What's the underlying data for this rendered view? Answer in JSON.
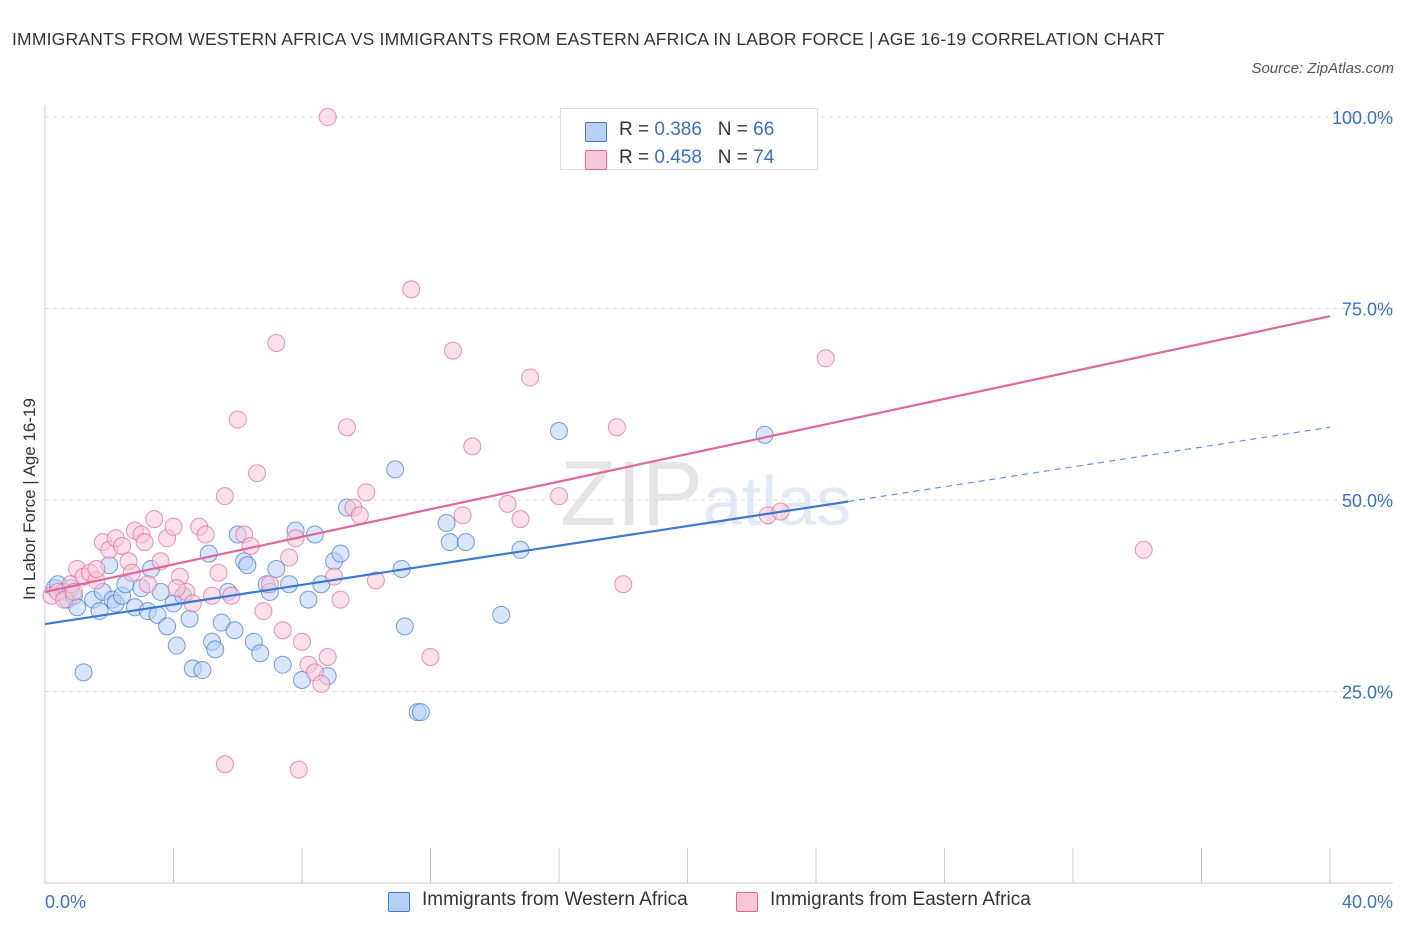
{
  "title": "IMMIGRANTS FROM WESTERN AFRICA VS IMMIGRANTS FROM EASTERN AFRICA IN LABOR FORCE | AGE 16-19 CORRELATION CHART",
  "source": "Source: ZipAtlas.com",
  "watermark": "ZIPatlas",
  "legend_top": [
    {
      "r_label": "R = ",
      "r_value": "0.386",
      "n_label": "N = ",
      "n_value": "66"
    },
    {
      "r_label": "R = ",
      "r_value": "0.458",
      "n_label": "N = ",
      "n_value": "74"
    }
  ],
  "legend_bottom": [
    "Immigrants from Western Africa",
    "Immigrants from Eastern Africa"
  ],
  "colors": {
    "blue": "#3a78d4",
    "pink": "#e0679a",
    "blue_fill": "#b8d0f5",
    "pink_fill": "#f8c6d7",
    "axis_text": "#3a6fc4"
  },
  "chart_data": {
    "type": "scatter",
    "title": "IMMIGRANTS FROM WESTERN AFRICA VS IMMIGRANTS FROM EASTERN AFRICA IN LABOR FORCE | AGE 16-19 CORRELATION CHART",
    "xlabel": "",
    "ylabel": "In Labor Force | Age 16-19",
    "xlim": [
      0,
      40
    ],
    "ylim": [
      0,
      100
    ],
    "x_tick_labels": [
      "0.0%",
      "40.0%"
    ],
    "y_tick_labels": [
      "25.0%",
      "50.0%",
      "75.0%",
      "100.0%"
    ],
    "y_ticks": [
      25,
      50,
      75,
      100
    ],
    "grid": true,
    "legend": "top-center",
    "series": [
      {
        "name": "Immigrants from Western Africa",
        "color": "#3a78d4",
        "trend": {
          "x": [
            0,
            25
          ],
          "y": [
            33.8,
            49.8
          ],
          "dashed_extension": {
            "x": [
              25,
              40
            ],
            "y": [
              49.8,
              59.5
            ]
          }
        },
        "x": [
          0.3,
          0.4,
          0.6,
          0.7,
          0.8,
          0.9,
          1.0,
          1.2,
          1.5,
          1.7,
          1.8,
          2.0,
          2.1,
          2.2,
          2.4,
          2.5,
          2.8,
          3.0,
          3.2,
          3.3,
          3.5,
          3.6,
          3.8,
          4.0,
          4.1,
          4.3,
          4.5,
          4.6,
          4.9,
          5.1,
          5.2,
          5.3,
          5.5,
          5.7,
          5.9,
          6.0,
          6.2,
          6.3,
          6.5,
          6.7,
          6.9,
          7.0,
          7.2,
          7.4,
          7.6,
          7.8,
          8.0,
          8.2,
          8.4,
          8.6,
          8.8,
          9.0,
          9.2,
          9.4,
          10.9,
          11.1,
          11.2,
          11.6,
          11.7,
          12.5,
          12.6,
          13.1,
          14.2,
          14.8,
          16.0,
          22.4
        ],
        "y": [
          38.5,
          39.0,
          38.0,
          37.0,
          38.5,
          37.5,
          36.0,
          27.5,
          37.0,
          35.5,
          38.0,
          41.5,
          37.0,
          36.5,
          37.5,
          39.0,
          36.0,
          38.5,
          35.5,
          41.0,
          35.0,
          38.0,
          33.5,
          36.5,
          31.0,
          37.5,
          34.5,
          28.0,
          27.8,
          43.0,
          31.5,
          30.5,
          34.0,
          38.0,
          33.0,
          45.5,
          42.0,
          41.5,
          31.5,
          30.0,
          39.0,
          38.0,
          41.0,
          28.5,
          39.0,
          46.0,
          26.5,
          37.0,
          45.5,
          39.0,
          27.0,
          42.0,
          43.0,
          49.0,
          54.0,
          41.0,
          33.5,
          22.3,
          22.3,
          47.0,
          44.5,
          44.5,
          35.0,
          43.5,
          59.0,
          58.5
        ]
      },
      {
        "name": "Immigrants from Eastern Africa",
        "color": "#e0679a",
        "trend": {
          "x": [
            0,
            40
          ],
          "y": [
            38.0,
            74.0
          ]
        },
        "x": [
          0.2,
          0.4,
          0.6,
          0.8,
          1.0,
          1.2,
          1.4,
          1.6,
          1.8,
          2.0,
          2.2,
          2.4,
          2.6,
          2.8,
          3.0,
          3.2,
          3.4,
          3.6,
          3.8,
          4.0,
          4.2,
          4.4,
          4.6,
          4.8,
          5.0,
          5.2,
          5.4,
          5.6,
          5.8,
          6.0,
          6.2,
          6.4,
          6.6,
          6.8,
          7.0,
          7.2,
          7.4,
          7.6,
          7.8,
          8.0,
          8.2,
          8.4,
          8.6,
          8.8,
          9.0,
          9.2,
          9.4,
          9.6,
          9.8,
          10.0,
          10.3,
          11.4,
          12.0,
          12.7,
          13.0,
          13.3,
          14.4,
          14.8,
          15.1,
          16.0,
          17.8,
          18.0,
          22.5,
          22.9,
          24.3,
          34.2,
          3.1,
          2.7,
          4.1,
          0.9,
          1.6,
          5.6,
          7.9,
          8.8
        ],
        "y": [
          37.5,
          38.0,
          37.0,
          39.0,
          41.0,
          40.0,
          40.5,
          39.5,
          44.5,
          43.5,
          45.0,
          44.0,
          42.0,
          46.0,
          45.5,
          39.0,
          47.5,
          42.0,
          45.0,
          46.5,
          40.0,
          38.0,
          36.5,
          46.5,
          45.5,
          37.5,
          40.5,
          50.5,
          37.5,
          60.5,
          45.5,
          44.0,
          53.5,
          35.5,
          39.0,
          70.5,
          33.0,
          42.5,
          45.0,
          31.5,
          28.5,
          27.5,
          26.0,
          29.5,
          40.0,
          37.0,
          59.5,
          49.0,
          48.0,
          51.0,
          39.5,
          77.5,
          29.5,
          69.5,
          48.0,
          57.0,
          49.5,
          47.5,
          66.0,
          50.5,
          59.5,
          39.0,
          48.0,
          48.5,
          68.5,
          43.5,
          44.5,
          40.5,
          38.5,
          38.0,
          41.0,
          15.5,
          14.8,
          100.0
        ]
      }
    ]
  }
}
